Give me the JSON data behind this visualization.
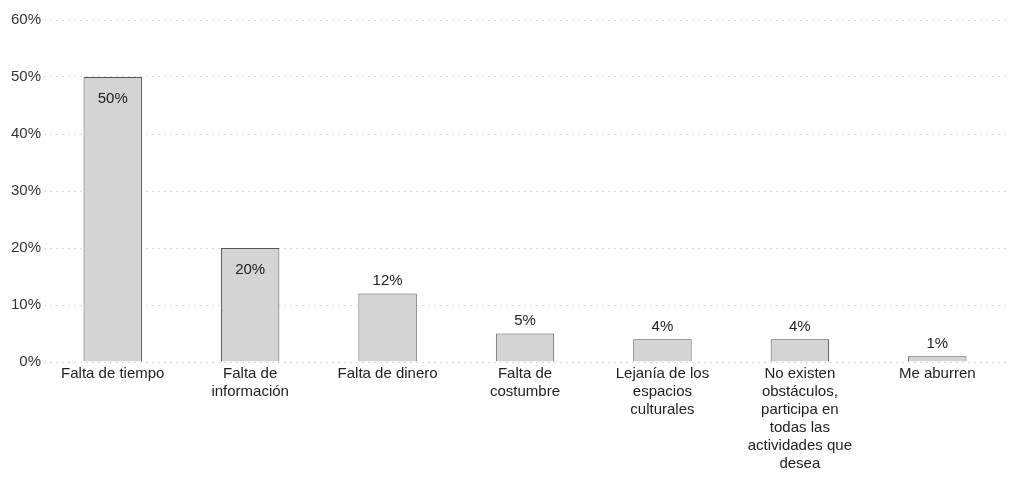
{
  "chart_data": {
    "type": "bar",
    "categories": [
      "Falta de tiempo",
      "Falta de información",
      "Falta de dinero",
      "Falta de costumbre",
      "Lejanía de los espacios culturales",
      "No existen obstáculos, participa en todas las actividades que desea",
      "Me aburren"
    ],
    "values": [
      50,
      20,
      12,
      5,
      4,
      4,
      1
    ],
    "value_labels": [
      "50%",
      "20%",
      "12%",
      "5%",
      "4%",
      "4%",
      "1%"
    ],
    "color": "#d4d4d4",
    "ylim": [
      0,
      60
    ],
    "yticks": [
      {
        "value": 0,
        "label": "0%"
      },
      {
        "value": 10,
        "label": "10%"
      },
      {
        "value": 20,
        "label": "20%"
      },
      {
        "value": 30,
        "label": "30%"
      },
      {
        "value": 40,
        "label": "40%"
      },
      {
        "value": 50,
        "label": "50%"
      },
      {
        "value": 60,
        "label": "60%"
      }
    ],
    "grid": "y",
    "legend": false
  }
}
